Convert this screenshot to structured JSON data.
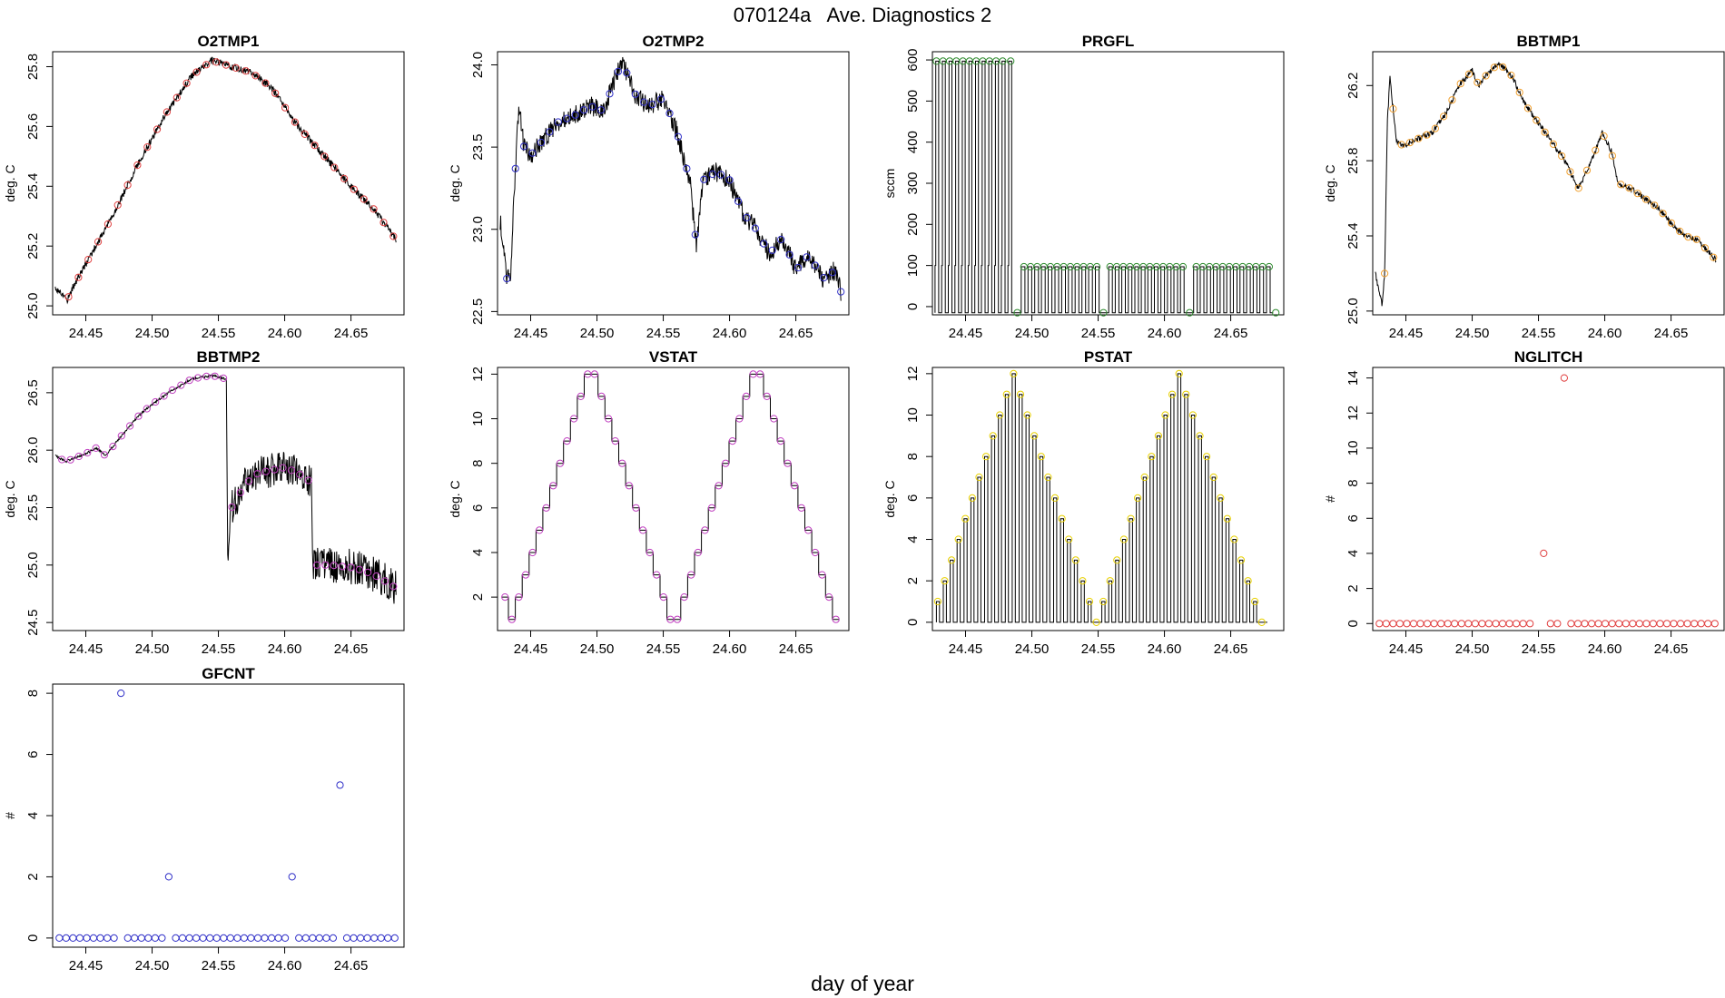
{
  "figure": {
    "title": "070124a   Ave. Diagnostics 2",
    "xlabel": "day of year"
  },
  "chart_data": [
    {
      "name": "O2TMP1",
      "type": "line",
      "title": "O2TMP1",
      "ylabel": "deg. C",
      "xlim": [
        24.425,
        24.69
      ],
      "ylim": [
        24.97,
        25.85
      ],
      "xticks": [
        24.45,
        24.5,
        24.55,
        24.6,
        24.65
      ],
      "yticks": [
        25.0,
        25.2,
        25.4,
        25.6,
        25.8
      ],
      "ydec": 1,
      "marker_color": "#e04040",
      "line": {
        "kind": "smooth",
        "noise": 0.012,
        "anchors": [
          [
            24.427,
            25.06
          ],
          [
            24.432,
            25.04
          ],
          [
            24.436,
            25.02
          ],
          [
            24.44,
            25.06
          ],
          [
            24.45,
            25.14
          ],
          [
            24.47,
            25.3
          ],
          [
            24.49,
            25.48
          ],
          [
            24.51,
            25.64
          ],
          [
            24.53,
            25.77
          ],
          [
            24.545,
            25.82
          ],
          [
            24.56,
            25.8
          ],
          [
            24.575,
            25.78
          ],
          [
            24.59,
            25.73
          ],
          [
            24.61,
            25.6
          ],
          [
            24.63,
            25.5
          ],
          [
            24.65,
            25.4
          ],
          [
            24.668,
            25.32
          ],
          [
            24.684,
            25.22
          ]
        ]
      },
      "points": {
        "kind": "sample_line",
        "x_start": 24.437,
        "x_end": 24.682,
        "count": 34
      }
    },
    {
      "name": "O2TMP2",
      "type": "line",
      "title": "O2TMP2",
      "ylabel": "deg. C",
      "xlim": [
        24.425,
        24.69
      ],
      "ylim": [
        22.48,
        24.08
      ],
      "xticks": [
        24.45,
        24.5,
        24.55,
        24.6,
        24.65
      ],
      "yticks": [
        22.5,
        23.0,
        23.5,
        24.0
      ],
      "ydec": 1,
      "marker_color": "#3030c8",
      "line": {
        "kind": "smooth",
        "noise": 0.06,
        "anchors": [
          [
            24.427,
            23.05
          ],
          [
            24.43,
            22.9
          ],
          [
            24.432,
            22.7
          ],
          [
            24.435,
            22.75
          ],
          [
            24.438,
            23.3
          ],
          [
            24.441,
            23.75
          ],
          [
            24.445,
            23.5
          ],
          [
            24.45,
            23.45
          ],
          [
            24.46,
            23.55
          ],
          [
            24.47,
            23.65
          ],
          [
            24.485,
            23.7
          ],
          [
            24.495,
            23.75
          ],
          [
            24.505,
            23.72
          ],
          [
            24.515,
            23.95
          ],
          [
            24.52,
            24.0
          ],
          [
            24.53,
            23.8
          ],
          [
            24.54,
            23.75
          ],
          [
            24.55,
            23.8
          ],
          [
            24.56,
            23.6
          ],
          [
            24.57,
            23.3
          ],
          [
            24.575,
            22.9
          ],
          [
            24.58,
            23.3
          ],
          [
            24.59,
            23.35
          ],
          [
            24.6,
            23.3
          ],
          [
            24.61,
            23.1
          ],
          [
            24.62,
            23.0
          ],
          [
            24.63,
            22.85
          ],
          [
            24.64,
            22.95
          ],
          [
            24.65,
            22.75
          ],
          [
            24.66,
            22.85
          ],
          [
            24.67,
            22.7
          ],
          [
            24.68,
            22.75
          ],
          [
            24.684,
            22.62
          ]
        ]
      },
      "points": {
        "kind": "sample_line",
        "x_start": 24.432,
        "x_end": 24.684,
        "count": 40
      }
    },
    {
      "name": "PRGFL",
      "type": "line",
      "title": "PRGFL",
      "ylabel": "sccm",
      "xlim": [
        24.425,
        24.69
      ],
      "ylim": [
        -20,
        620
      ],
      "xticks": [
        24.45,
        24.5,
        24.55,
        24.6,
        24.65
      ],
      "yticks": [
        0,
        100,
        200,
        300,
        400,
        500,
        600
      ],
      "ydec": 0,
      "marker_color": "#2e8b2e",
      "line": {
        "kind": "spikes",
        "base": -15,
        "intervals": [
          {
            "x0": 24.427,
            "x1": 24.487,
            "n": 12,
            "mid": 100,
            "top": 597
          },
          {
            "x0": 24.492,
            "x1": 24.553,
            "n": 12,
            "mid": 97,
            "top": 97
          },
          {
            "x0": 24.558,
            "x1": 24.617,
            "n": 12,
            "mid": 97,
            "top": 97
          },
          {
            "x0": 24.622,
            "x1": 24.682,
            "n": 12,
            "mid": 97,
            "top": 97
          }
        ]
      },
      "points": {
        "kind": "explicit",
        "pts": [
          [
            24.428,
            597
          ],
          [
            24.433,
            597
          ],
          [
            24.438,
            597
          ],
          [
            24.443,
            597
          ],
          [
            24.448,
            597
          ],
          [
            24.453,
            597
          ],
          [
            24.458,
            597
          ],
          [
            24.463,
            597
          ],
          [
            24.468,
            597
          ],
          [
            24.473,
            597
          ],
          [
            24.478,
            597
          ],
          [
            24.484,
            597
          ],
          [
            24.489,
            -15
          ],
          [
            24.494,
            97
          ],
          [
            24.499,
            97
          ],
          [
            24.504,
            97
          ],
          [
            24.509,
            97
          ],
          [
            24.514,
            97
          ],
          [
            24.519,
            97
          ],
          [
            24.524,
            97
          ],
          [
            24.529,
            97
          ],
          [
            24.534,
            97
          ],
          [
            24.539,
            97
          ],
          [
            24.544,
            97
          ],
          [
            24.549,
            97
          ],
          [
            24.554,
            -15
          ],
          [
            24.559,
            97
          ],
          [
            24.564,
            97
          ],
          [
            24.569,
            97
          ],
          [
            24.574,
            97
          ],
          [
            24.579,
            97
          ],
          [
            24.584,
            97
          ],
          [
            24.589,
            97
          ],
          [
            24.594,
            97
          ],
          [
            24.599,
            97
          ],
          [
            24.604,
            97
          ],
          [
            24.609,
            97
          ],
          [
            24.614,
            97
          ],
          [
            24.619,
            -15
          ],
          [
            24.624,
            97
          ],
          [
            24.629,
            97
          ],
          [
            24.634,
            97
          ],
          [
            24.639,
            97
          ],
          [
            24.644,
            97
          ],
          [
            24.649,
            97
          ],
          [
            24.654,
            97
          ],
          [
            24.659,
            97
          ],
          [
            24.664,
            97
          ],
          [
            24.669,
            97
          ],
          [
            24.674,
            97
          ],
          [
            24.679,
            97
          ],
          [
            24.684,
            -15
          ]
        ]
      }
    },
    {
      "name": "BBTMP1",
      "type": "line",
      "title": "BBTMP1",
      "ylabel": "deg. C",
      "xlim": [
        24.425,
        24.69
      ],
      "ylim": [
        24.98,
        26.38
      ],
      "xticks": [
        24.45,
        24.5,
        24.55,
        24.6,
        24.65
      ],
      "yticks": [
        25.0,
        25.4,
        25.8,
        26.2
      ],
      "ydec": 1,
      "marker_color": "#f0a030",
      "line": {
        "kind": "smooth",
        "noise": 0.015,
        "anchors": [
          [
            24.427,
            25.2
          ],
          [
            24.43,
            25.1
          ],
          [
            24.432,
            25.03
          ],
          [
            24.434,
            25.2
          ],
          [
            24.436,
            26.0
          ],
          [
            24.438,
            26.25
          ],
          [
            24.44,
            26.1
          ],
          [
            24.443,
            25.9
          ],
          [
            24.448,
            25.88
          ],
          [
            24.46,
            25.92
          ],
          [
            24.47,
            25.95
          ],
          [
            24.48,
            26.05
          ],
          [
            24.49,
            26.2
          ],
          [
            24.5,
            26.28
          ],
          [
            24.505,
            26.2
          ],
          [
            24.51,
            26.25
          ],
          [
            24.52,
            26.32
          ],
          [
            24.53,
            26.25
          ],
          [
            24.54,
            26.1
          ],
          [
            24.55,
            26.0
          ],
          [
            24.56,
            25.9
          ],
          [
            24.57,
            25.8
          ],
          [
            24.58,
            25.65
          ],
          [
            24.59,
            25.8
          ],
          [
            24.598,
            25.95
          ],
          [
            24.605,
            25.85
          ],
          [
            24.61,
            25.68
          ],
          [
            24.62,
            25.65
          ],
          [
            24.63,
            25.6
          ],
          [
            24.64,
            25.55
          ],
          [
            24.65,
            25.47
          ],
          [
            24.66,
            25.4
          ],
          [
            24.67,
            25.38
          ],
          [
            24.684,
            25.27
          ]
        ]
      },
      "points": {
        "kind": "sample_line",
        "x_start": 24.434,
        "x_end": 24.682,
        "count": 40
      }
    },
    {
      "name": "BBTMP2",
      "type": "line",
      "title": "BBTMP2",
      "ylabel": "deg. C",
      "xlim": [
        24.425,
        24.69
      ],
      "ylim": [
        24.43,
        26.72
      ],
      "xticks": [
        24.45,
        24.5,
        24.55,
        24.6,
        24.65
      ],
      "yticks": [
        24.5,
        25.0,
        25.5,
        26.0,
        26.5
      ],
      "ydec": 1,
      "marker_color": "#c040c0",
      "line": {
        "kind": "segments",
        "segments": [
          {
            "noise": 0.01,
            "anchors": [
              [
                24.427,
                25.95
              ],
              [
                24.435,
                25.9
              ],
              [
                24.45,
                25.97
              ],
              [
                24.458,
                26.02
              ],
              [
                24.465,
                25.95
              ],
              [
                24.475,
                26.1
              ],
              [
                24.49,
                26.3
              ],
              [
                24.5,
                26.4
              ],
              [
                24.515,
                26.52
              ],
              [
                24.53,
                26.62
              ],
              [
                24.545,
                26.65
              ],
              [
                24.556,
                26.62
              ]
            ]
          },
          {
            "noise": 0.15,
            "anchors": [
              [
                24.557,
                25.1
              ],
              [
                24.56,
                25.5
              ],
              [
                24.57,
                25.7
              ],
              [
                24.58,
                25.8
              ],
              [
                24.6,
                25.85
              ],
              [
                24.61,
                25.8
              ],
              [
                24.62,
                25.72
              ]
            ]
          },
          {
            "noise": 0.16,
            "anchors": [
              [
                24.621,
                25.0
              ],
              [
                24.635,
                25.0
              ],
              [
                24.65,
                24.98
              ],
              [
                24.66,
                24.95
              ],
              [
                24.67,
                24.9
              ],
              [
                24.684,
                24.8
              ]
            ]
          }
        ]
      },
      "points": {
        "kind": "sample_line",
        "x_start": 24.432,
        "x_end": 24.682,
        "count": 40
      }
    },
    {
      "name": "VSTAT",
      "type": "line",
      "title": "VSTAT",
      "ylabel": "deg. C",
      "xlim": [
        24.425,
        24.69
      ],
      "ylim": [
        0.5,
        12.3
      ],
      "xticks": [
        24.45,
        24.5,
        24.55,
        24.6,
        24.65
      ],
      "yticks": [
        2,
        4,
        6,
        8,
        10,
        12
      ],
      "ydec": 0,
      "marker_color": "#c040c0",
      "line": {
        "kind": "steps",
        "x0": 24.428,
        "dx": 0.0052,
        "values": [
          2,
          1,
          2,
          3,
          4,
          5,
          6,
          7,
          8,
          9,
          10,
          11,
          12,
          12,
          11,
          10,
          9,
          8,
          7,
          6,
          5,
          4,
          3,
          2,
          1,
          1,
          2,
          3,
          4,
          5,
          6,
          7,
          8,
          9,
          10,
          11,
          12,
          12,
          11,
          10,
          9,
          8,
          7,
          6,
          5,
          4,
          3,
          2,
          1
        ]
      },
      "points": {
        "kind": "step_ends"
      }
    },
    {
      "name": "PSTAT",
      "type": "line",
      "title": "PSTAT",
      "ylabel": "deg. C",
      "xlim": [
        24.425,
        24.69
      ],
      "ylim": [
        -0.4,
        12.3
      ],
      "xticks": [
        24.45,
        24.5,
        24.55,
        24.6,
        24.65
      ],
      "yticks": [
        0,
        2,
        4,
        6,
        8,
        10,
        12
      ],
      "ydec": 0,
      "marker_color": "#e8d000",
      "line": {
        "kind": "pulses",
        "x0": 24.428,
        "dx": 0.0052,
        "values": [
          1,
          2,
          3,
          4,
          5,
          6,
          7,
          8,
          9,
          10,
          11,
          12,
          11,
          10,
          9,
          8,
          7,
          6,
          5,
          4,
          3,
          2,
          1,
          0,
          1,
          2,
          3,
          4,
          5,
          6,
          7,
          8,
          9,
          10,
          11,
          12,
          11,
          10,
          9,
          8,
          7,
          6,
          5,
          4,
          3,
          2,
          1,
          0
        ]
      },
      "points": {
        "kind": "step_ends"
      }
    },
    {
      "name": "NGLITCH",
      "type": "scatter",
      "title": "NGLITCH",
      "ylabel": "#",
      "xlim": [
        24.425,
        24.69
      ],
      "ylim": [
        -0.4,
        14.6
      ],
      "xticks": [
        24.45,
        24.5,
        24.55,
        24.6,
        24.65
      ],
      "yticks": [
        0,
        2,
        4,
        6,
        8,
        10,
        12,
        14
      ],
      "ydec": 0,
      "marker_color": "#e04040",
      "line": null,
      "points": {
        "kind": "grid",
        "x_start": 24.43,
        "x_end": 24.683,
        "count": 50,
        "base": 0,
        "overrides": [
          [
            24.552,
            4
          ],
          [
            24.568,
            14
          ]
        ],
        "gaps": [
          24.548
        ]
      }
    },
    {
      "name": "GFCNT",
      "type": "scatter",
      "title": "GFCNT",
      "ylabel": "#",
      "xlim": [
        24.425,
        24.69
      ],
      "ylim": [
        -0.3,
        8.3
      ],
      "xticks": [
        24.45,
        24.5,
        24.55,
        24.6,
        24.65
      ],
      "yticks": [
        0,
        2,
        4,
        6,
        8
      ],
      "ydec": 0,
      "marker_color": "#3030c8",
      "line": null,
      "points": {
        "kind": "grid",
        "x_start": 24.43,
        "x_end": 24.683,
        "count": 50,
        "base": 0,
        "overrides": [
          [
            24.478,
            8
          ],
          [
            24.515,
            2
          ],
          [
            24.604,
            2
          ],
          [
            24.641,
            5
          ]
        ],
        "gaps": []
      }
    }
  ]
}
